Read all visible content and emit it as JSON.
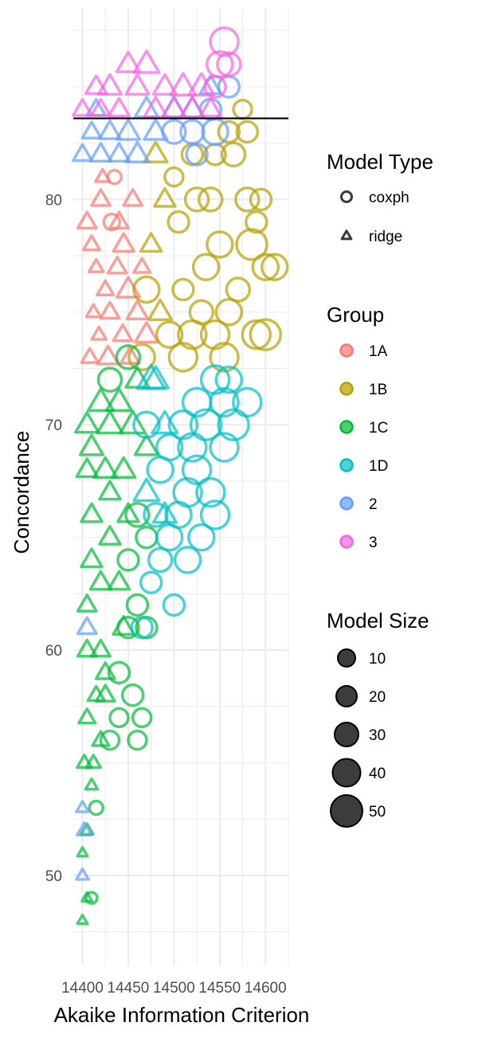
{
  "chart_data": {
    "type": "scatter",
    "title": "",
    "xlabel": "Akaike Information Criterion",
    "ylabel": "Concordance",
    "xlim": [
      14390,
      14625
    ],
    "ylim": [
      46,
      88.5
    ],
    "xticks": [
      14400,
      14450,
      14500,
      14550,
      14600
    ],
    "yticks": [
      50,
      60,
      70,
      80
    ],
    "grid": true,
    "reference_line": {
      "y": 83.6
    },
    "legends": [
      {
        "title": "Model Type",
        "entries": [
          {
            "label": "coxph",
            "shape": "circle"
          },
          {
            "label": "ridge",
            "shape": "triangle"
          }
        ]
      },
      {
        "title": "Group",
        "entries": [
          {
            "label": "1A",
            "color": "#F8766D"
          },
          {
            "label": "1B",
            "color": "#B79F00"
          },
          {
            "label": "1C",
            "color": "#00BA38"
          },
          {
            "label": "1D",
            "color": "#00BFC4"
          },
          {
            "label": "2",
            "color": "#619CFF"
          },
          {
            "label": "3",
            "color": "#F564E3"
          }
        ]
      },
      {
        "title": "Model Size",
        "entries": [
          {
            "label": "10",
            "size": 10
          },
          {
            "label": "20",
            "size": 20
          },
          {
            "label": "30",
            "size": 30
          },
          {
            "label": "40",
            "size": 40
          },
          {
            "label": "50",
            "size": 50
          }
        ]
      }
    ],
    "series": [
      {
        "group": "1A",
        "color": "#F8766D",
        "points": [
          [
            14405,
            79,
            "t",
            30
          ],
          [
            14410,
            78,
            "t",
            25
          ],
          [
            14420,
            80,
            "t",
            30
          ],
          [
            14415,
            77,
            "t",
            20
          ],
          [
            14425,
            76,
            "t",
            25
          ],
          [
            14430,
            75,
            "t",
            30
          ],
          [
            14418,
            74,
            "t",
            20
          ],
          [
            14428,
            73,
            "t",
            35
          ],
          [
            14440,
            79,
            "t",
            30
          ],
          [
            14435,
            81,
            "c",
            15
          ],
          [
            14445,
            78,
            "t",
            35
          ],
          [
            14450,
            76,
            "t",
            40
          ],
          [
            14412,
            75,
            "t",
            20
          ],
          [
            14422,
            81,
            "t",
            20
          ],
          [
            14438,
            77,
            "t",
            30
          ],
          [
            14455,
            80,
            "t",
            30
          ],
          [
            14460,
            75,
            "t",
            35
          ],
          [
            14408,
            73,
            "t",
            25
          ],
          [
            14432,
            79,
            "c",
            20
          ],
          [
            14444,
            74,
            "t",
            30
          ],
          [
            14465,
            77,
            "t",
            25
          ],
          [
            14452,
            73,
            "t",
            30
          ],
          [
            14470,
            74,
            "t",
            40
          ]
        ]
      },
      {
        "group": "1B",
        "color": "#B79F00",
        "points": [
          [
            14480,
            82,
            "t",
            40
          ],
          [
            14500,
            81,
            "c",
            25
          ],
          [
            14520,
            82,
            "c",
            30
          ],
          [
            14540,
            80,
            "c",
            35
          ],
          [
            14560,
            83,
            "c",
            30
          ],
          [
            14575,
            84,
            "c",
            25
          ],
          [
            14580,
            80,
            "c",
            35
          ],
          [
            14590,
            79,
            "c",
            30
          ],
          [
            14600,
            77,
            "c",
            40
          ],
          [
            14610,
            77,
            "c",
            40
          ],
          [
            14570,
            76,
            "c",
            35
          ],
          [
            14550,
            78,
            "c",
            40
          ],
          [
            14530,
            75,
            "c",
            35
          ],
          [
            14510,
            76,
            "c",
            30
          ],
          [
            14495,
            74,
            "c",
            40
          ],
          [
            14520,
            74,
            "c",
            45
          ],
          [
            14545,
            74,
            "c",
            45
          ],
          [
            14560,
            75,
            "c",
            40
          ],
          [
            14590,
            74,
            "c",
            45
          ],
          [
            14600,
            74,
            "c",
            50
          ],
          [
            14505,
            79,
            "c",
            30
          ],
          [
            14525,
            80,
            "c",
            35
          ],
          [
            14545,
            82,
            "c",
            30
          ],
          [
            14565,
            82,
            "c",
            35
          ],
          [
            14485,
            75,
            "t",
            40
          ],
          [
            14475,
            78,
            "t",
            35
          ],
          [
            14465,
            73,
            "c",
            40
          ],
          [
            14490,
            80,
            "t",
            35
          ],
          [
            14535,
            77,
            "c",
            40
          ],
          [
            14555,
            73,
            "c",
            45
          ],
          [
            14580,
            83,
            "c",
            30
          ],
          [
            14585,
            78,
            "c",
            50
          ],
          [
            14470,
            76,
            "c",
            40
          ],
          [
            14510,
            73,
            "c",
            45
          ],
          [
            14595,
            80,
            "c",
            30
          ]
        ]
      },
      {
        "group": "1C",
        "color": "#00BA38",
        "points": [
          [
            14400,
            48,
            "t",
            10
          ],
          [
            14405,
            49,
            "t",
            10
          ],
          [
            14410,
            49,
            "c",
            10
          ],
          [
            14400,
            51,
            "t",
            10
          ],
          [
            14405,
            52,
            "t",
            15
          ],
          [
            14410,
            54,
            "t",
            15
          ],
          [
            14402,
            55,
            "t",
            20
          ],
          [
            14412,
            55,
            "t",
            20
          ],
          [
            14420,
            56,
            "t",
            25
          ],
          [
            14430,
            56,
            "c",
            25
          ],
          [
            14440,
            57,
            "c",
            25
          ],
          [
            14460,
            56,
            "c",
            25
          ],
          [
            14405,
            57,
            "t",
            25
          ],
          [
            14415,
            58,
            "t",
            25
          ],
          [
            14425,
            58,
            "t",
            30
          ],
          [
            14405,
            60,
            "t",
            30
          ],
          [
            14420,
            60,
            "t",
            30
          ],
          [
            14440,
            59,
            "c",
            30
          ],
          [
            14450,
            61,
            "c",
            30
          ],
          [
            14470,
            61,
            "c",
            30
          ],
          [
            14405,
            62,
            "t",
            30
          ],
          [
            14420,
            63,
            "t",
            35
          ],
          [
            14440,
            63,
            "t",
            35
          ],
          [
            14460,
            62,
            "c",
            30
          ],
          [
            14410,
            64,
            "t",
            35
          ],
          [
            14430,
            65,
            "t",
            35
          ],
          [
            14450,
            64,
            "c",
            30
          ],
          [
            14470,
            65,
            "c",
            30
          ],
          [
            14410,
            66,
            "t",
            35
          ],
          [
            14430,
            67,
            "t",
            35
          ],
          [
            14450,
            66,
            "t",
            35
          ],
          [
            14405,
            68,
            "t",
            35
          ],
          [
            14425,
            68,
            "t",
            40
          ],
          [
            14445,
            68,
            "t",
            40
          ],
          [
            14410,
            69,
            "t",
            40
          ],
          [
            14430,
            70,
            "t",
            45
          ],
          [
            14455,
            70,
            "t",
            45
          ],
          [
            14405,
            70,
            "t",
            40
          ],
          [
            14420,
            71,
            "t",
            45
          ],
          [
            14440,
            71,
            "t",
            45
          ],
          [
            14460,
            72,
            "t",
            40
          ],
          [
            14430,
            72,
            "c",
            35
          ],
          [
            14450,
            73,
            "c",
            35
          ],
          [
            14415,
            53,
            "c",
            15
          ],
          [
            14425,
            59,
            "t",
            30
          ],
          [
            14445,
            61,
            "t",
            35
          ],
          [
            14455,
            58,
            "c",
            30
          ],
          [
            14465,
            57,
            "c",
            25
          ],
          [
            14460,
            66,
            "c",
            35
          ],
          [
            14470,
            69,
            "t",
            40
          ]
        ]
      },
      {
        "group": "1D",
        "color": "#00BFC4",
        "points": [
          [
            14465,
            61,
            "c",
            30
          ],
          [
            14475,
            63,
            "c",
            30
          ],
          [
            14485,
            64,
            "c",
            35
          ],
          [
            14495,
            65,
            "c",
            40
          ],
          [
            14505,
            66,
            "c",
            40
          ],
          [
            14515,
            67,
            "c",
            45
          ],
          [
            14525,
            68,
            "c",
            45
          ],
          [
            14540,
            67,
            "c",
            45
          ],
          [
            14555,
            69,
            "c",
            45
          ],
          [
            14565,
            70,
            "c",
            50
          ],
          [
            14580,
            71,
            "c",
            45
          ],
          [
            14470,
            67,
            "t",
            45
          ],
          [
            14485,
            68,
            "c",
            40
          ],
          [
            14495,
            69,
            "c",
            40
          ],
          [
            14510,
            70,
            "c",
            45
          ],
          [
            14525,
            71,
            "c",
            45
          ],
          [
            14545,
            72,
            "c",
            45
          ],
          [
            14560,
            72,
            "c",
            40
          ],
          [
            14475,
            72,
            "t",
            50
          ],
          [
            14490,
            70,
            "t",
            45
          ],
          [
            14500,
            62,
            "c",
            30
          ],
          [
            14515,
            64,
            "c",
            40
          ],
          [
            14530,
            65,
            "c",
            40
          ],
          [
            14545,
            66,
            "c",
            45
          ],
          [
            14480,
            66,
            "c",
            35
          ],
          [
            14470,
            70,
            "c",
            40
          ],
          [
            14555,
            71,
            "c",
            45
          ],
          [
            14520,
            69,
            "c",
            45
          ],
          [
            14535,
            70,
            "c",
            50
          ],
          [
            14480,
            72,
            "t",
            45
          ],
          [
            14490,
            66,
            "t",
            40
          ]
        ]
      },
      {
        "group": "2",
        "color": "#619CFF",
        "points": [
          [
            14400,
            50,
            "t",
            15
          ],
          [
            14400,
            53,
            "t",
            15
          ],
          [
            14402,
            52,
            "t",
            20
          ],
          [
            14405,
            61,
            "t",
            30
          ],
          [
            14400,
            82,
            "t",
            30
          ],
          [
            14420,
            82,
            "t",
            35
          ],
          [
            14440,
            82,
            "t",
            35
          ],
          [
            14460,
            82,
            "t",
            40
          ],
          [
            14480,
            83,
            "t",
            40
          ],
          [
            14500,
            83,
            "c",
            35
          ],
          [
            14520,
            83,
            "c",
            35
          ],
          [
            14540,
            84,
            "c",
            30
          ],
          [
            14560,
            85,
            "c",
            30
          ],
          [
            14500,
            84,
            "t",
            40
          ],
          [
            14520,
            84,
            "t",
            40
          ],
          [
            14540,
            85,
            "t",
            35
          ],
          [
            14410,
            83,
            "t",
            30
          ],
          [
            14430,
            83,
            "t",
            35
          ],
          [
            14450,
            83,
            "t",
            40
          ],
          [
            14470,
            84,
            "t",
            40
          ],
          [
            14415,
            84,
            "t",
            30
          ],
          [
            14545,
            83,
            "c",
            40
          ],
          [
            14525,
            82,
            "c",
            30
          ]
        ]
      },
      {
        "group": "3",
        "color": "#F564E3",
        "points": [
          [
            14400,
            84,
            "t",
            30
          ],
          [
            14415,
            85,
            "t",
            35
          ],
          [
            14430,
            85,
            "t",
            40
          ],
          [
            14450,
            86,
            "t",
            40
          ],
          [
            14470,
            86,
            "t",
            45
          ],
          [
            14490,
            85,
            "t",
            40
          ],
          [
            14510,
            85,
            "t",
            45
          ],
          [
            14530,
            85,
            "t",
            45
          ],
          [
            14550,
            86,
            "c",
            40
          ],
          [
            14555,
            87,
            "c",
            45
          ],
          [
            14420,
            84,
            "t",
            30
          ],
          [
            14440,
            84,
            "t",
            35
          ],
          [
            14460,
            85,
            "t",
            40
          ],
          [
            14480,
            84,
            "t",
            40
          ],
          [
            14500,
            84,
            "t",
            40
          ],
          [
            14520,
            84,
            "t",
            40
          ],
          [
            14540,
            84,
            "t",
            35
          ],
          [
            14545,
            85,
            "c",
            30
          ],
          [
            14560,
            86,
            "c",
            35
          ]
        ]
      }
    ]
  }
}
